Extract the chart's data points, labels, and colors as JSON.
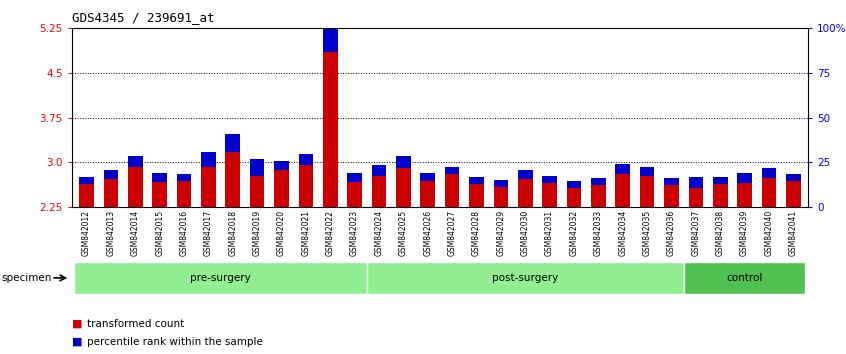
{
  "title": "GDS4345 / 239691_at",
  "samples": [
    "GSM842012",
    "GSM842013",
    "GSM842014",
    "GSM842015",
    "GSM842016",
    "GSM842017",
    "GSM842018",
    "GSM842019",
    "GSM842020",
    "GSM842021",
    "GSM842022",
    "GSM842023",
    "GSM842024",
    "GSM842025",
    "GSM842026",
    "GSM842027",
    "GSM842028",
    "GSM842029",
    "GSM842030",
    "GSM842031",
    "GSM842032",
    "GSM842033",
    "GSM842034",
    "GSM842035",
    "GSM842036",
    "GSM842037",
    "GSM842038",
    "GSM842039",
    "GSM842040",
    "GSM842041"
  ],
  "red_values": [
    2.63,
    2.72,
    2.92,
    2.67,
    2.68,
    2.93,
    3.17,
    2.78,
    2.88,
    2.96,
    4.85,
    2.67,
    2.77,
    2.9,
    2.68,
    2.8,
    2.63,
    2.58,
    2.72,
    2.65,
    2.57,
    2.62,
    2.8,
    2.78,
    2.62,
    2.57,
    2.63,
    2.65,
    2.73,
    2.68
  ],
  "blue_values": [
    4,
    5,
    6,
    5,
    4,
    8,
    10,
    9,
    5,
    6,
    30,
    5,
    6,
    7,
    5,
    4,
    4,
    4,
    5,
    4,
    4,
    4,
    6,
    5,
    4,
    6,
    4,
    6,
    6,
    4
  ],
  "groups": [
    {
      "label": "pre-surgery",
      "start": 0,
      "end": 11,
      "color": "#90ee90"
    },
    {
      "label": "post-surgery",
      "start": 12,
      "end": 24,
      "color": "#90ee90"
    },
    {
      "label": "control",
      "start": 25,
      "end": 29,
      "color": "#50c050"
    }
  ],
  "ymin": 2.25,
  "ymax": 5.25,
  "yticks_left": [
    2.25,
    3.0,
    3.75,
    4.5,
    5.25
  ],
  "yticks_right_vals": [
    0,
    25,
    50,
    75,
    100
  ],
  "yticks_right_labels": [
    "0",
    "25",
    "50",
    "75",
    "100%"
  ],
  "hlines": [
    3.0,
    3.75,
    4.5
  ],
  "bar_color_red": "#cc0000",
  "bar_color_blue": "#0000cc",
  "tick_area_bg": "#c8c8c8",
  "specimen_label": "specimen"
}
